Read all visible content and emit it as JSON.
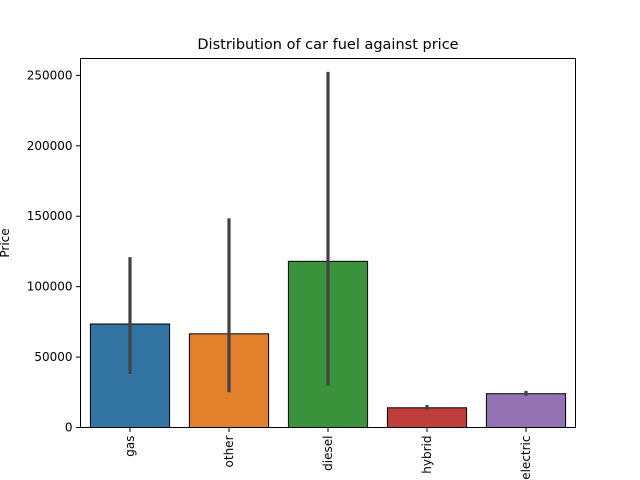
{
  "chart_data": {
    "type": "bar",
    "title": "Distribution of car fuel against price",
    "xlabel": "",
    "ylabel": "Price",
    "categories": [
      "gas",
      "other",
      "diesel",
      "hybrid",
      "electric"
    ],
    "values": [
      73500,
      66500,
      118000,
      14000,
      24000
    ],
    "error_low": [
      38000,
      25000,
      30000,
      12500,
      22500
    ],
    "error_high": [
      121000,
      148500,
      252500,
      16000,
      26000
    ],
    "colors": [
      "#3274a1",
      "#e1812c",
      "#3a923a",
      "#c03d3e",
      "#9372b2"
    ],
    "ylim": [
      0,
      262000
    ],
    "yticks": [
      0,
      50000,
      100000,
      150000,
      200000,
      250000
    ],
    "ytick_labels": [
      "0",
      "50000",
      "100000",
      "150000",
      "200000",
      "250000"
    ],
    "xtick_rotation": "vertical",
    "grid": false,
    "legend": "none"
  }
}
